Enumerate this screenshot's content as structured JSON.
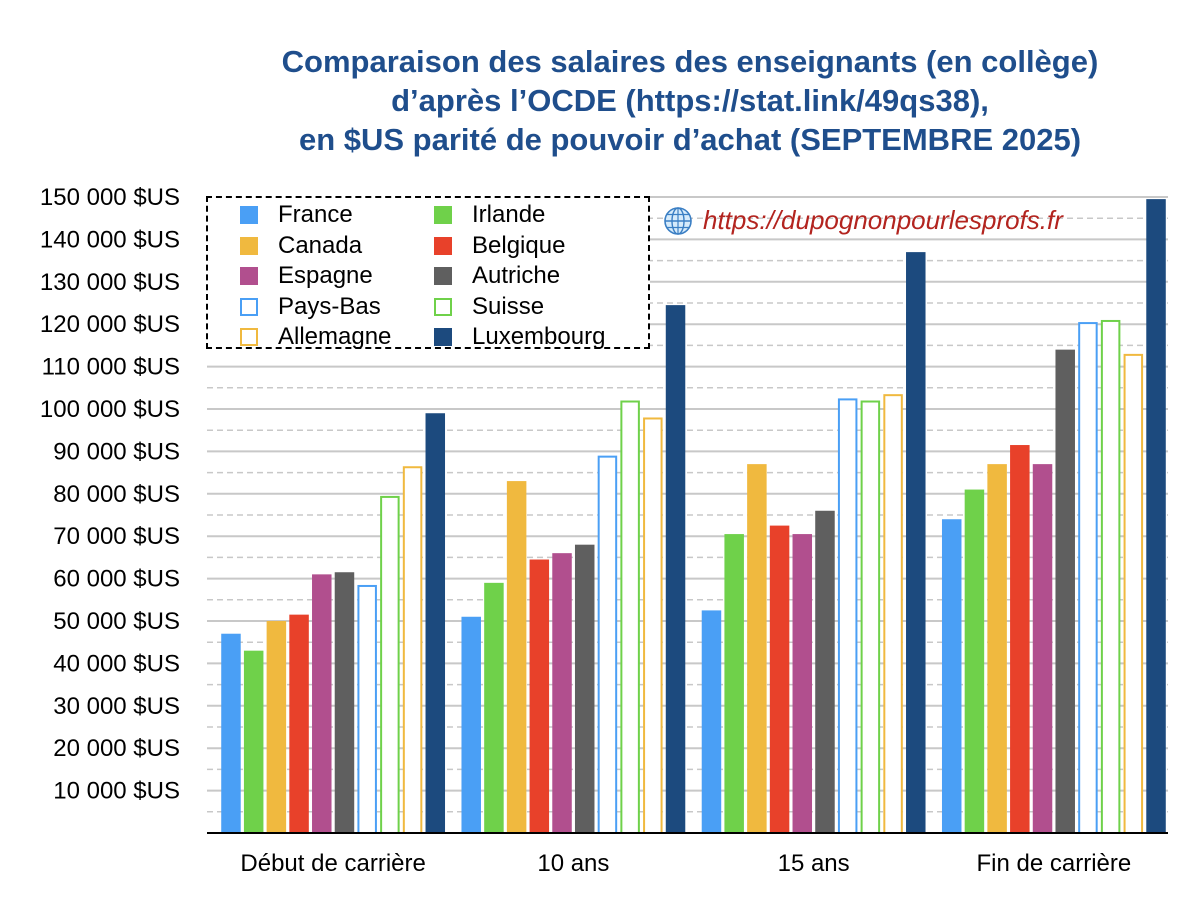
{
  "title_lines": [
    "Comparaison des salaires des enseignants (en collège)",
    "d’après l’OCDE (https://stat.link/49qs38),",
    "en $US parité de pouvoir d’achat (SEPTEMBRE 2025)"
  ],
  "website": "https://dupognonpourlesprofs.fr",
  "chart_data": {
    "type": "bar",
    "title": "Comparaison des salaires des enseignants (en collège) d’après l’OCDE (https://stat.link/49qs38), en $US parité de pouvoir d’achat (SEPTEMBRE 2025)",
    "categories": [
      "Début de carrière",
      "10 ans",
      "15 ans",
      "Fin de carrière"
    ],
    "ylim": [
      0,
      150000
    ],
    "ytick_values": [
      10000,
      20000,
      30000,
      40000,
      50000,
      60000,
      70000,
      80000,
      90000,
      100000,
      110000,
      120000,
      130000,
      140000,
      150000
    ],
    "ytick_labels": [
      "10 000 $US",
      "20 000 $US",
      "30 000 $US",
      "40 000 $US",
      "50 000 $US",
      "60 000 $US",
      "70 000 $US",
      "80 000 $US",
      "90 000 $US",
      "100 000 $US",
      "110 000 $US",
      "120 000 $US",
      "130 000 $US",
      "140 000 $US",
      "150 000 $US"
    ],
    "grid": true,
    "legend_position": "top-left",
    "series": [
      {
        "name": "France",
        "color": "#4a9ff5",
        "style": "filled",
        "values": [
          47000,
          51000,
          52500,
          74000
        ]
      },
      {
        "name": "Irlande",
        "color": "#6fd14a",
        "style": "filled",
        "values": [
          43000,
          59000,
          70500,
          81000
        ]
      },
      {
        "name": "Canada",
        "color": "#f0b93f",
        "style": "filled",
        "values": [
          50000,
          83000,
          87000,
          87000
        ]
      },
      {
        "name": "Belgique",
        "color": "#e8412a",
        "style": "filled",
        "values": [
          51500,
          64500,
          72500,
          91500
        ]
      },
      {
        "name": "Espagne",
        "color": "#b14f8e",
        "style": "filled",
        "values": [
          61000,
          66000,
          70500,
          87000
        ]
      },
      {
        "name": "Autriche",
        "color": "#5f5f5f",
        "style": "filled",
        "values": [
          61500,
          68000,
          76000,
          114000
        ]
      },
      {
        "name": "Pays-Bas",
        "color": "#4a9ff5",
        "style": "outline",
        "values": [
          58500,
          89000,
          102500,
          120500
        ]
      },
      {
        "name": "Suisse",
        "color": "#6fd14a",
        "style": "outline",
        "values": [
          79500,
          102000,
          102000,
          121000
        ]
      },
      {
        "name": "Allemagne",
        "color": "#f0b93f",
        "style": "outline",
        "values": [
          86500,
          98000,
          103500,
          113000
        ]
      },
      {
        "name": "Luxembourg",
        "color": "#1c4a7e",
        "style": "filled",
        "values": [
          99000,
          124500,
          137000,
          149500
        ]
      }
    ],
    "legend_order": [
      "France",
      "Canada",
      "Espagne",
      "Pays-Bas",
      "Allemagne",
      "Irlande",
      "Belgique",
      "Autriche",
      "Suisse",
      "Luxembourg"
    ]
  }
}
